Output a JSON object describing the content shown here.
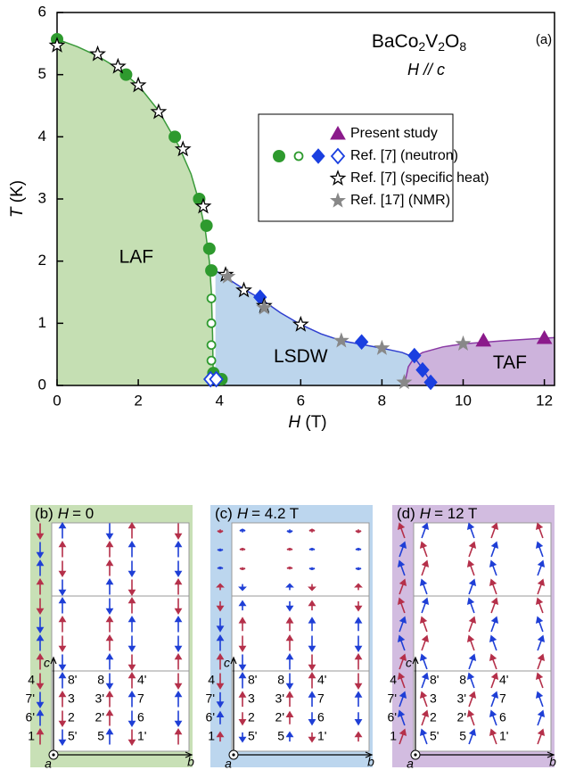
{
  "chart_data": {
    "type": "scatter",
    "title_parts": [
      "BaCo",
      "2",
      "V",
      "2",
      "O",
      "8"
    ],
    "subtitle": "H // c",
    "panel_label": "(a)",
    "xlabel_parts": [
      "H",
      " (T)"
    ],
    "ylabel_parts": [
      "T",
      " (K)"
    ],
    "xlim": [
      0,
      12.25
    ],
    "ylim": [
      0,
      6
    ],
    "xticks": [
      0,
      2,
      4,
      6,
      8,
      10,
      12
    ],
    "yticks": [
      0,
      1,
      2,
      3,
      4,
      5,
      6
    ],
    "phases": [
      {
        "name": "LAF",
        "fill": "#c5dfb3",
        "line": "#3a9a3a",
        "x": [
          0,
          0.5,
          1,
          1.5,
          2,
          2.5,
          3,
          3.3,
          3.5,
          3.65,
          3.75,
          3.8,
          3.83,
          3.85
        ],
        "y": [
          5.57,
          5.45,
          5.3,
          5.1,
          4.83,
          4.42,
          3.85,
          3.4,
          2.95,
          2.5,
          2.0,
          1.5,
          0.8,
          0
        ]
      },
      {
        "name": "LSDW",
        "fill": "#bcd5ec",
        "line": "#2f3fcf",
        "x": [
          3.9,
          4.2,
          4.6,
          5,
          5.5,
          6,
          6.5,
          7,
          7.5,
          8,
          8.5,
          8.8,
          9.0,
          9.25
        ],
        "y": [
          1.85,
          1.72,
          1.55,
          1.4,
          1.17,
          0.98,
          0.83,
          0.72,
          0.66,
          0.6,
          0.53,
          0.45,
          0.27,
          0
        ]
      },
      {
        "name": "TAF",
        "fill": "#cdb3dc",
        "line": "#8a3aa5",
        "x": [
          8.55,
          8.65,
          8.8,
          9,
          9.5,
          10,
          11,
          12,
          12.25
        ],
        "y": [
          0,
          0.3,
          0.45,
          0.53,
          0.62,
          0.67,
          0.72,
          0.76,
          0.77
        ]
      }
    ],
    "series": [
      {
        "name": "Present study",
        "groups": [
          {
            "marker": "triangle",
            "filled": true,
            "color": "#8b1a8b",
            "x": [
              10.5,
              12.0
            ],
            "y": [
              0.72,
              0.76
            ]
          }
        ]
      },
      {
        "name": "Ref. [7] (neutron)",
        "groups": [
          {
            "marker": "circle",
            "filled": true,
            "color": "#2e9a2e",
            "x": [
              0,
              1.7,
              2.9,
              3.5,
              3.68,
              3.75,
              3.8,
              3.85,
              4.05
            ],
            "y": [
              5.57,
              5.0,
              4.0,
              3.0,
              2.57,
              2.2,
              1.85,
              0.2,
              0.1
            ]
          },
          {
            "marker": "circle",
            "filled": false,
            "color": "#2e9a2e",
            "x": [
              3.8,
              3.8,
              3.8,
              3.8
            ],
            "y": [
              1.4,
              1.0,
              0.65,
              0.4
            ]
          },
          {
            "marker": "diamond",
            "filled": true,
            "color": "#1a3fe0",
            "x": [
              5,
              7.5,
              8.8,
              9.0,
              9.2
            ],
            "y": [
              1.42,
              0.7,
              0.48,
              0.25,
              0.05
            ]
          },
          {
            "marker": "diamond",
            "filled": false,
            "color": "#1a3fe0",
            "x": [
              3.78,
              3.92
            ],
            "y": [
              0.1,
              0.1
            ]
          }
        ]
      },
      {
        "name": "Ref. [7] (specific heat)",
        "groups": [
          {
            "marker": "star",
            "filled": false,
            "color": "#000000",
            "x": [
              0,
              1,
              1.5,
              2,
              2.5,
              3.1,
              3.6,
              4.15,
              4.6,
              5.1,
              6.0
            ],
            "y": [
              5.47,
              5.33,
              5.13,
              4.83,
              4.4,
              3.8,
              2.88,
              1.78,
              1.53,
              1.28,
              0.98
            ]
          }
        ]
      },
      {
        "name": "Ref. [17] (NMR)",
        "groups": [
          {
            "marker": "star",
            "filled": true,
            "color": "#888888",
            "x": [
              4.2,
              5.1,
              7.0,
              8.0,
              8.55,
              10.0
            ],
            "y": [
              1.75,
              1.25,
              0.72,
              0.6,
              0.05,
              0.67
            ]
          }
        ]
      }
    ]
  },
  "panels": [
    {
      "title_parts": [
        "(b)",
        "H",
        "= 0"
      ],
      "background": "#c8e0b6",
      "axes": [
        "c",
        "b",
        "a"
      ],
      "columns": [
        {
          "colors": [
            "#b5304a",
            "#1f3fd6",
            "#1f3fd6",
            "#b5304a"
          ],
          "angles": [
            180,
            180,
            0,
            0
          ],
          "labels": [
            "4",
            "7'",
            "6'",
            "1"
          ]
        },
        {
          "colors": [
            "#1f3fd6",
            "#b5304a",
            "#b5304a",
            "#1f3fd6"
          ],
          "angles": [
            0,
            0,
            180,
            180
          ],
          "labels": [
            "8'",
            "3",
            "2",
            "5'"
          ]
        },
        {
          "colors": [
            "#1f3fd6",
            "#b5304a",
            "#b5304a",
            "#1f3fd6"
          ],
          "angles": [
            180,
            0,
            0,
            0
          ],
          "labels": [
            "8",
            "3'",
            "2'",
            "5"
          ]
        },
        {
          "colors": [
            "#b5304a",
            "#1f3fd6",
            "#1f3fd6",
            "#b5304a"
          ],
          "angles": [
            0,
            0,
            180,
            180
          ],
          "labels": [
            "4'",
            "7",
            "6",
            "1'"
          ]
        },
        {
          "colors": [
            "#b5304a",
            "#1f3fd6",
            "#1f3fd6",
            "#b5304a"
          ],
          "angles": [
            180,
            0,
            180,
            0
          ]
        }
      ]
    },
    {
      "title_parts": [
        "(c)",
        "H",
        "= 4.2 T"
      ],
      "background": "#bcd6ee",
      "axes": [
        "c",
        "b",
        "a"
      ],
      "lengths": [
        0.2,
        0.15,
        0.15,
        0.4,
        0.6,
        0.85,
        1,
        1,
        1,
        0.95,
        0.8,
        0.6
      ],
      "columns": [
        {
          "colors": [
            "#b5304a",
            "#1f3fd6",
            "#1f3fd6",
            "#b5304a"
          ],
          "angles": [
            180,
            180,
            0,
            0
          ],
          "labels": [
            "4",
            "7'",
            "6'",
            "1"
          ]
        },
        {
          "colors": [
            "#1f3fd6",
            "#b5304a",
            "#b5304a",
            "#1f3fd6"
          ],
          "angles": [
            0,
            0,
            180,
            180
          ],
          "labels": [
            "8'",
            "3",
            "2",
            "5'"
          ]
        },
        {
          "colors": [
            "#1f3fd6",
            "#b5304a",
            "#b5304a",
            "#1f3fd6"
          ],
          "angles": [
            180,
            0,
            0,
            0
          ],
          "labels": [
            "8",
            "3'",
            "2'",
            "5"
          ]
        },
        {
          "colors": [
            "#b5304a",
            "#1f3fd6",
            "#1f3fd6",
            "#b5304a"
          ],
          "angles": [
            0,
            0,
            180,
            180
          ],
          "labels": [
            "4'",
            "7",
            "6",
            "1'"
          ]
        },
        {
          "colors": [
            "#b5304a",
            "#1f3fd6",
            "#1f3fd6",
            "#b5304a"
          ],
          "angles": [
            180,
            0,
            180,
            0
          ]
        }
      ]
    },
    {
      "title_parts": [
        "(d)",
        "H",
        "= 12 T"
      ],
      "background": "#d2bce0",
      "axes": [
        "c",
        "b",
        "a"
      ],
      "columns": [
        {
          "colors": [
            "#b5304a",
            "#1f3fd6",
            "#1f3fd6",
            "#b5304a"
          ],
          "angles": [
            -20,
            20,
            -20,
            20
          ],
          "labels": [
            "4",
            "7'",
            "6'",
            "1"
          ]
        },
        {
          "colors": [
            "#1f3fd6",
            "#b5304a",
            "#b5304a",
            "#1f3fd6"
          ],
          "angles": [
            20,
            -20,
            20,
            -20
          ],
          "labels": [
            "8'",
            "3",
            "2",
            "5'"
          ]
        },
        {
          "colors": [
            "#1f3fd6",
            "#b5304a",
            "#b5304a",
            "#1f3fd6"
          ],
          "angles": [
            -20,
            20,
            -20,
            20
          ],
          "labels": [
            "8",
            "3'",
            "2'",
            "5"
          ]
        },
        {
          "colors": [
            "#b5304a",
            "#1f3fd6",
            "#1f3fd6",
            "#b5304a"
          ],
          "angles": [
            20,
            20,
            -20,
            -20
          ],
          "labels": [
            "4'",
            "7",
            "6",
            "1'"
          ]
        },
        {
          "colors": [
            "#b5304a",
            "#1f3fd6",
            "#1f3fd6",
            "#b5304a"
          ],
          "angles": [
            -20,
            -20,
            20,
            20
          ]
        }
      ]
    }
  ]
}
